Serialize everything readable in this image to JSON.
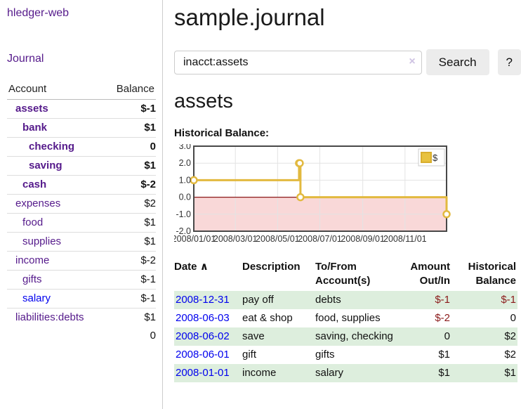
{
  "sidebar": {
    "app_title": "hledger-web",
    "nav_journal": "Journal",
    "accounts_table": {
      "headers": {
        "account": "Account",
        "balance": "Balance"
      },
      "rows": [
        {
          "name": "assets",
          "balance": "$-1",
          "level": 0,
          "bold": true,
          "negative": "strong"
        },
        {
          "name": "bank",
          "balance": "$1",
          "level": 1,
          "bold": true
        },
        {
          "name": "checking",
          "balance": "0",
          "level": 2,
          "bold": true
        },
        {
          "name": "saving",
          "balance": "$1",
          "level": 2,
          "bold": true
        },
        {
          "name": "cash",
          "balance": "$-2",
          "level": 1,
          "bold": true,
          "negative": "strong"
        },
        {
          "name": "expenses",
          "balance": "$2",
          "level": 0
        },
        {
          "name": "food",
          "balance": "$1",
          "level": 1
        },
        {
          "name": "supplies",
          "balance": "$1",
          "level": 1
        },
        {
          "name": "income",
          "balance": "$-2",
          "level": 0,
          "negative": "muted"
        },
        {
          "name": "gifts",
          "balance": "$-1",
          "level": 1,
          "negative": "muted"
        },
        {
          "name": "salary",
          "balance": "$-1",
          "level": 1,
          "negative": "muted",
          "unvisited": true
        },
        {
          "name": "liabilities:debts",
          "balance": "$1",
          "level": 0
        }
      ],
      "total": "0"
    }
  },
  "main": {
    "page_title": "sample.journal",
    "search": {
      "value": "inacct:assets",
      "clear_icon": "×",
      "search_button": "Search",
      "help_button": "?"
    },
    "account_heading": "assets",
    "chart_label": "Historical Balance:",
    "register": {
      "headers": {
        "date": "Date",
        "sort_indicator": "∧",
        "description": "Description",
        "accounts_line1": "To/From",
        "accounts_line2": "Account(s)",
        "amount_line1": "Amount",
        "amount_line2": "Out/In",
        "balance_line1": "Historical",
        "balance_line2": "Balance"
      },
      "rows": [
        {
          "date": "2008-12-31",
          "description": "pay off",
          "accounts": "debts",
          "amount": "$-1",
          "balance": "$-1"
        },
        {
          "date": "2008-06-03",
          "description": "eat & shop",
          "accounts": "food, supplies",
          "amount": "$-2",
          "balance": "0"
        },
        {
          "date": "2008-06-02",
          "description": "save",
          "accounts": "saving, checking",
          "amount": "0",
          "balance": "$2"
        },
        {
          "date": "2008-06-01",
          "description": "gift",
          "accounts": "gifts",
          "amount": "$1",
          "balance": "$2"
        },
        {
          "date": "2008-01-01",
          "description": "income",
          "accounts": "salary",
          "amount": "$1",
          "balance": "$1"
        }
      ]
    }
  },
  "chart_data": {
    "type": "line",
    "title": "Historical Balance",
    "series": [
      {
        "name": "$",
        "color": "#e2b93f",
        "step": true,
        "points": [
          [
            "2008-01-01",
            1
          ],
          [
            "2008-06-01",
            2
          ],
          [
            "2008-06-02",
            2
          ],
          [
            "2008-06-03",
            0
          ],
          [
            "2008-12-31",
            -1
          ]
        ]
      }
    ],
    "x_ticks": [
      "2008/01/01",
      "2008/03/01",
      "2008/05/01",
      "2008/07/01",
      "2008/09/01",
      "2008/11/01"
    ],
    "y_ticks": [
      "3.0",
      "2.0",
      "1.0",
      "0.0",
      "-1.0",
      "-2.0"
    ],
    "xlim": [
      "2008-01-01",
      "2008-12-31"
    ],
    "ylim": [
      -2,
      3
    ],
    "grid": true,
    "legend": {
      "label": "$",
      "position": "top-right",
      "swatch_color": "#e8c23f"
    },
    "zero_line_color": "#8b1a1a",
    "negative_region_color": "#f9d8d8"
  },
  "colors": {
    "link_purple": "#551a8b",
    "link_blue": "#0000ee",
    "negative_strong": "#8b1a1a",
    "negative_muted": "#b25f5f",
    "row_green": "#ddeedd",
    "chart_gold": "#e2b93f"
  }
}
